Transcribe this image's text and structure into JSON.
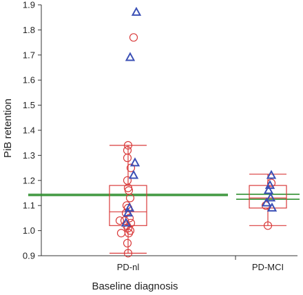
{
  "chart_data": {
    "type": "scatter",
    "xlabel": "Baseline diagnosis",
    "ylabel": "PiB retention",
    "ylim": [
      0.9,
      1.9
    ],
    "yticks": [
      "0.9",
      "1.0",
      "1.1",
      "1.2",
      "1.3",
      "1.4",
      "1.5",
      "1.6",
      "1.7",
      "1.8",
      "1.9"
    ],
    "categories": [
      "PD-nl",
      "PD-MCI"
    ],
    "grid": false,
    "colors": {
      "box": "#d93a3a",
      "circle": "#d93a3a",
      "triangle": "#3a4fb5",
      "reference_line": "#2f8f2f",
      "axis": "#333333"
    },
    "boxplots": [
      {
        "category": "PD-nl",
        "whisker_low": 0.91,
        "q1": 1.02,
        "median": 1.075,
        "q3": 1.18,
        "whisker_high": 1.34
      },
      {
        "category": "PD-MCI",
        "whisker_low": 1.02,
        "q1": 1.09,
        "median": 1.13,
        "q3": 1.18,
        "whisker_high": 1.225
      }
    ],
    "reference_lines": [
      {
        "category": "PD-nl",
        "values": [
          1.14,
          1.145
        ]
      },
      {
        "category": "PD-MCI",
        "values": [
          1.125,
          1.145
        ]
      }
    ],
    "series": [
      {
        "marker": "circle",
        "points": [
          {
            "category": "PD-nl",
            "y": 1.77,
            "offset": 0.08
          },
          {
            "category": "PD-nl",
            "y": 1.34,
            "offset": 0.0
          },
          {
            "category": "PD-nl",
            "y": 1.32,
            "offset": -0.01
          },
          {
            "category": "PD-nl",
            "y": 1.29,
            "offset": -0.01
          },
          {
            "category": "PD-nl",
            "y": 1.25,
            "offset": 0.04
          },
          {
            "category": "PD-nl",
            "y": 1.2,
            "offset": -0.01
          },
          {
            "category": "PD-nl",
            "y": 1.17,
            "offset": 0.0
          },
          {
            "category": "PD-nl",
            "y": 1.16,
            "offset": 0.01
          },
          {
            "category": "PD-nl",
            "y": 1.13,
            "offset": 0.03
          },
          {
            "category": "PD-nl",
            "y": 1.1,
            "offset": -0.02
          },
          {
            "category": "PD-nl",
            "y": 1.09,
            "offset": 0.0
          },
          {
            "category": "PD-nl",
            "y": 1.07,
            "offset": -0.03
          },
          {
            "category": "PD-nl",
            "y": 1.05,
            "offset": 0.02
          },
          {
            "category": "PD-nl",
            "y": 1.04,
            "offset": -0.12
          },
          {
            "category": "PD-nl",
            "y": 1.04,
            "offset": -0.05
          },
          {
            "category": "PD-nl",
            "y": 1.03,
            "offset": 0.04
          },
          {
            "category": "PD-nl",
            "y": 1.02,
            "offset": -0.02
          },
          {
            "category": "PD-nl",
            "y": 1.01,
            "offset": 0.0
          },
          {
            "category": "PD-nl",
            "y": 1.0,
            "offset": 0.03
          },
          {
            "category": "PD-nl",
            "y": 0.99,
            "offset": -0.1
          },
          {
            "category": "PD-nl",
            "y": 0.99,
            "offset": 0.01
          },
          {
            "category": "PD-nl",
            "y": 0.95,
            "offset": -0.01
          },
          {
            "category": "PD-nl",
            "y": 0.91,
            "offset": 0.0
          },
          {
            "category": "PD-MCI",
            "y": 1.19,
            "offset": 0.05
          },
          {
            "category": "PD-MCI",
            "y": 1.1,
            "offset": -0.03
          },
          {
            "category": "PD-MCI",
            "y": 1.02,
            "offset": 0.0
          }
        ]
      },
      {
        "marker": "triangle",
        "points": [
          {
            "category": "PD-nl",
            "y": 1.87,
            "offset": 0.12
          },
          {
            "category": "PD-nl",
            "y": 1.69,
            "offset": 0.03
          },
          {
            "category": "PD-nl",
            "y": 1.27,
            "offset": 0.1
          },
          {
            "category": "PD-nl",
            "y": 1.22,
            "offset": 0.08
          },
          {
            "category": "PD-nl",
            "y": 1.09,
            "offset": 0.02
          },
          {
            "category": "PD-nl",
            "y": 1.07,
            "offset": 0.0
          },
          {
            "category": "PD-nl",
            "y": 1.03,
            "offset": -0.03
          },
          {
            "category": "PD-MCI",
            "y": 1.22,
            "offset": 0.05
          },
          {
            "category": "PD-MCI",
            "y": 1.18,
            "offset": 0.03
          },
          {
            "category": "PD-MCI",
            "y": 1.16,
            "offset": 0.01
          },
          {
            "category": "PD-MCI",
            "y": 1.13,
            "offset": 0.04
          },
          {
            "category": "PD-MCI",
            "y": 1.11,
            "offset": -0.02
          },
          {
            "category": "PD-MCI",
            "y": 1.09,
            "offset": 0.06
          }
        ]
      }
    ]
  }
}
